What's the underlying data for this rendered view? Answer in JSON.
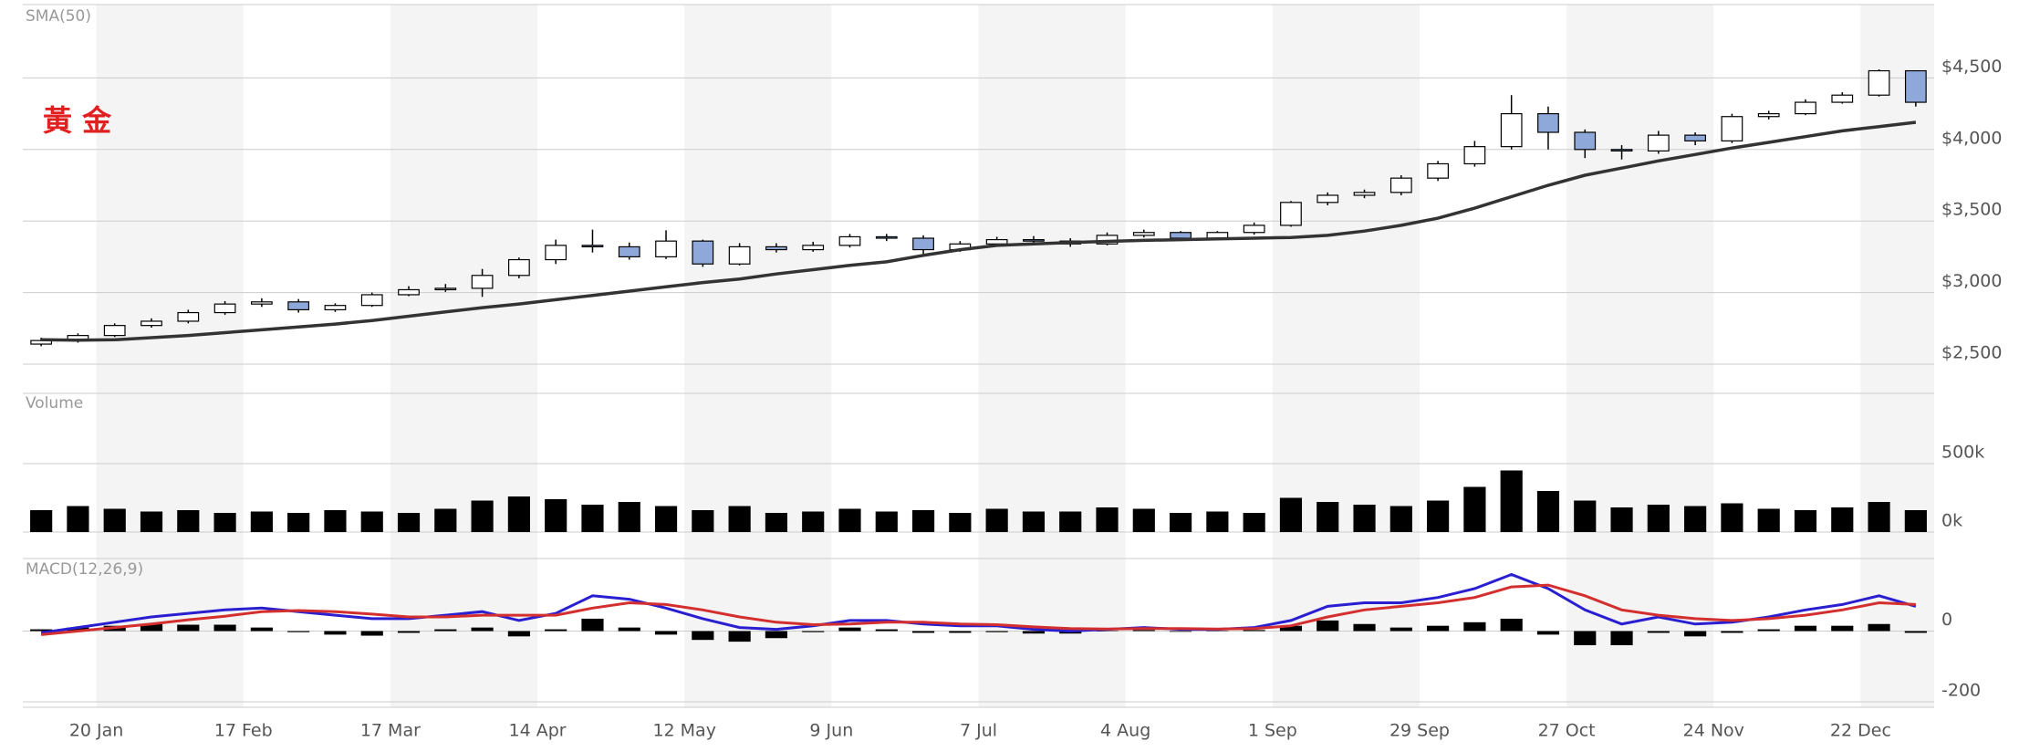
{
  "chart_data": [
    {
      "type": "candlestick",
      "title": "SMA(50)",
      "annotation": "黃 金",
      "open": [
        2640,
        2665,
        2700,
        2770,
        2800,
        2860,
        2920,
        2935,
        2880,
        2910,
        2985,
        3020,
        3030,
        3120,
        3230,
        3330,
        3320,
        3250,
        3360,
        3200,
        3320,
        3300,
        3330,
        3390,
        3380,
        3300,
        3340,
        3370,
        3360,
        3340,
        3400,
        3420,
        3380,
        3420,
        3470,
        3630,
        3680,
        3700,
        3800,
        3900,
        4020,
        4250,
        4120,
        4000,
        3990,
        4100,
        4060,
        4230,
        4250,
        4330,
        4380,
        4550
      ],
      "high": [
        2685,
        2715,
        2785,
        2820,
        2880,
        2940,
        2960,
        2955,
        2925,
        3000,
        3045,
        3060,
        3165,
        3245,
        3370,
        3440,
        3350,
        3435,
        3370,
        3345,
        3345,
        3355,
        3410,
        3410,
        3400,
        3360,
        3390,
        3395,
        3380,
        3420,
        3440,
        3430,
        3430,
        3490,
        3640,
        3700,
        3720,
        3820,
        3920,
        4060,
        4380,
        4300,
        4140,
        4030,
        4130,
        4120,
        4250,
        4270,
        4350,
        4400,
        4560,
        4550
      ],
      "low": [
        2625,
        2650,
        2690,
        2755,
        2785,
        2845,
        2900,
        2860,
        2865,
        2900,
        2975,
        3005,
        2970,
        3100,
        3200,
        3280,
        3230,
        3235,
        3180,
        3190,
        3280,
        3285,
        3315,
        3360,
        3270,
        3285,
        3325,
        3340,
        3320,
        3330,
        3385,
        3365,
        3370,
        3405,
        3460,
        3610,
        3660,
        3680,
        3780,
        3880,
        4000,
        4000,
        3940,
        3930,
        3970,
        4030,
        4045,
        4210,
        4240,
        4320,
        4370,
        4300
      ],
      "close": [
        2665,
        2700,
        2770,
        2800,
        2860,
        2920,
        2935,
        2880,
        2910,
        2985,
        3020,
        3030,
        3120,
        3230,
        3330,
        3320,
        3250,
        3360,
        3200,
        3320,
        3300,
        3330,
        3390,
        3380,
        3300,
        3340,
        3370,
        3360,
        3340,
        3400,
        3420,
        3380,
        3420,
        3470,
        3630,
        3680,
        3700,
        3800,
        3900,
        4020,
        4250,
        4120,
        4000,
        3990,
        4100,
        4060,
        4230,
        4250,
        4330,
        4380,
        4550,
        4330
      ],
      "up_color": "#ffffff",
      "down_color": "#8ea9d9",
      "series": [
        {
          "name": "SMA(50)",
          "color": "#333333",
          "values": [
            2670,
            2668,
            2670,
            2685,
            2700,
            2720,
            2740,
            2760,
            2780,
            2805,
            2835,
            2865,
            2895,
            2920,
            2950,
            2980,
            3010,
            3040,
            3070,
            3095,
            3130,
            3160,
            3190,
            3215,
            3260,
            3300,
            3330,
            3340,
            3350,
            3358,
            3365,
            3370,
            3375,
            3380,
            3385,
            3400,
            3430,
            3470,
            3520,
            3590,
            3670,
            3750,
            3820,
            3870,
            3920,
            3965,
            4010,
            4050,
            4090,
            4130,
            4160,
            4190
          ]
        }
      ],
      "ylim": [
        2500,
        5000
      ],
      "yticks": [
        {
          "value": 2500,
          "label": "$2,500"
        },
        {
          "value": 3000,
          "label": "$3,000"
        },
        {
          "value": 3500,
          "label": "$3,500"
        },
        {
          "value": 4000,
          "label": "$4,000"
        },
        {
          "value": 4500,
          "label": "$4,500"
        }
      ],
      "grid": true
    },
    {
      "type": "bar",
      "title": "Volume",
      "color": "#000000",
      "values": [
        160000,
        190000,
        170000,
        150000,
        160000,
        140000,
        150000,
        140000,
        160000,
        150000,
        140000,
        170000,
        230000,
        260000,
        240000,
        200000,
        220000,
        190000,
        160000,
        190000,
        140000,
        150000,
        170000,
        150000,
        160000,
        140000,
        170000,
        150000,
        150000,
        180000,
        170000,
        140000,
        150000,
        140000,
        250000,
        220000,
        200000,
        190000,
        230000,
        330000,
        450000,
        300000,
        230000,
        180000,
        200000,
        190000,
        210000,
        170000,
        160000,
        180000,
        220000,
        160000
      ],
      "ylim": [
        0,
        1000000
      ],
      "yticks": [
        {
          "value": 0,
          "label": "0k"
        },
        {
          "value": 500000,
          "label": "500k"
        }
      ],
      "grid": true
    },
    {
      "type": "macd",
      "title": "MACD(12,26,9)",
      "categories": [
        null,
        null,
        "20 Jan",
        null,
        null,
        null,
        "17 Feb",
        null,
        null,
        null,
        "17 Mar",
        null,
        null,
        null,
        "14 Apr",
        null,
        null,
        null,
        "12 May",
        null,
        null,
        null,
        "9 Jun",
        null,
        null,
        null,
        "7 Jul",
        null,
        null,
        null,
        "4 Aug",
        null,
        null,
        null,
        "1 Sep",
        null,
        null,
        null,
        "29 Sep",
        null,
        null,
        null,
        "27 Oct",
        null,
        null,
        null,
        "24 Nov",
        null,
        null,
        null,
        "22 Dec",
        null
      ],
      "lines": [
        {
          "color": "#2a1fd0",
          "values": [
            -5,
            10,
            25,
            40,
            50,
            60,
            65,
            55,
            45,
            35,
            35,
            45,
            55,
            30,
            50,
            100,
            90,
            65,
            35,
            10,
            5,
            15,
            30,
            30,
            20,
            15,
            15,
            5,
            0,
            5,
            10,
            5,
            5,
            10,
            30,
            70,
            80,
            80,
            95,
            120,
            160,
            120,
            60,
            20,
            40,
            20,
            25,
            40,
            60,
            75,
            100,
            70
          ]
        },
        {
          "color": "#d32f2f",
          "values": [
            -10,
            0,
            10,
            20,
            32,
            42,
            55,
            58,
            55,
            48,
            40,
            40,
            45,
            45,
            45,
            65,
            80,
            75,
            60,
            40,
            25,
            18,
            20,
            25,
            25,
            20,
            18,
            12,
            7,
            6,
            7,
            7,
            6,
            7,
            15,
            40,
            60,
            70,
            80,
            95,
            125,
            130,
            100,
            60,
            45,
            35,
            30,
            35,
            45,
            60,
            80,
            75
          ]
        }
      ],
      "histogram": {
        "color": "#000000",
        "values": [
          5,
          10,
          15,
          20,
          18,
          18,
          10,
          -3,
          -10,
          -13,
          -5,
          5,
          10,
          -15,
          5,
          35,
          10,
          -10,
          -25,
          -30,
          -20,
          -3,
          10,
          5,
          -5,
          -5,
          -3,
          -7,
          -7,
          -1,
          3,
          -2,
          -1,
          3,
          15,
          30,
          20,
          10,
          15,
          25,
          35,
          -10,
          -40,
          -40,
          -5,
          -15,
          -5,
          5,
          15,
          15,
          20,
          -5
        ]
      },
      "ylim": [
        -200,
        200
      ],
      "yticks": [
        -200,
        0
      ],
      "grid": true
    }
  ]
}
